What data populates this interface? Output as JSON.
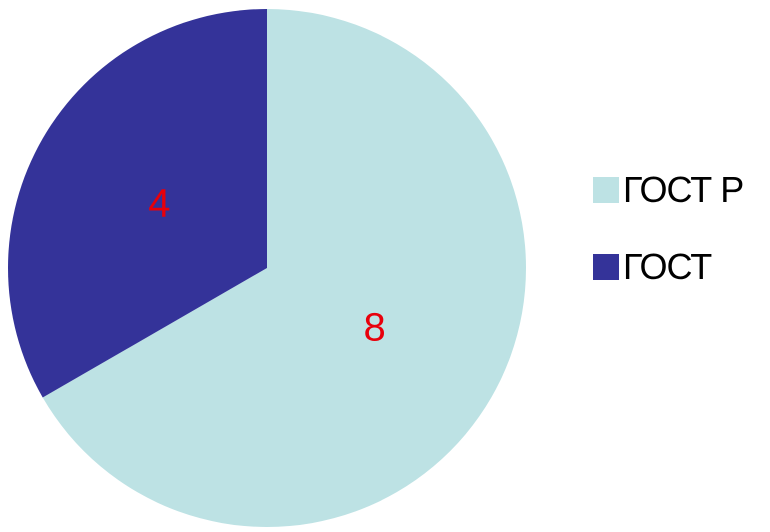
{
  "chart_data": {
    "type": "pie",
    "categories": [
      "ГОСТ Р",
      "ГОСТ"
    ],
    "values": [
      8,
      4
    ],
    "data_labels": [
      "8",
      "4"
    ],
    "colors": [
      "#bde2e4",
      "#343399"
    ],
    "label_color": "#e8000b",
    "start_angle_deg": 0,
    "direction": "clockwise",
    "legend_position": "right"
  }
}
